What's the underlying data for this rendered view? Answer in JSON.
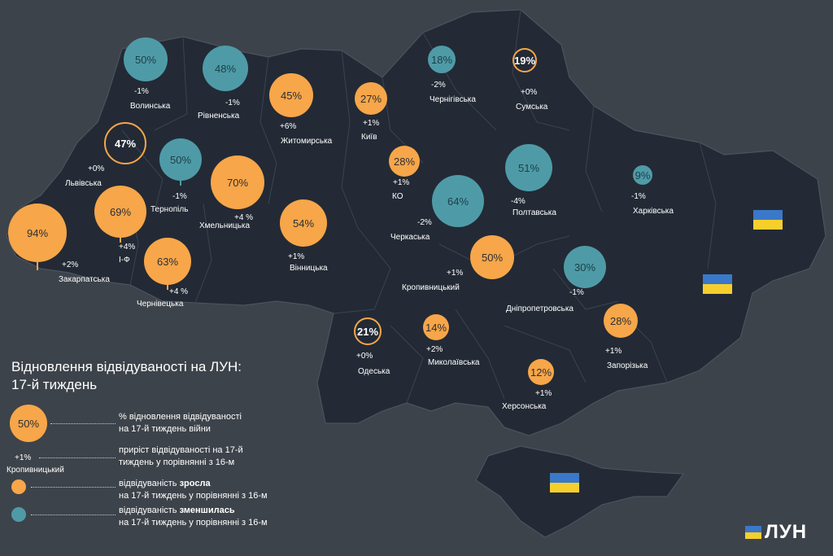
{
  "title_line1": "Відновлення відвідуваності на ЛУН:",
  "title_line2": "17-й тиждень",
  "colors": {
    "increase": "#f7a649",
    "decrease": "#4e9ba7",
    "map_fill": "#232a35",
    "background": "#3d434a"
  },
  "regions": [
    {
      "id": "volyn",
      "name": "Волинська",
      "value": "50%",
      "change": "-1%",
      "trend": "down"
    },
    {
      "id": "rivne",
      "name": "Рівненська",
      "value": "48%",
      "change": "-1%",
      "trend": "down"
    },
    {
      "id": "zhytomyr",
      "name": "Житомирська",
      "value": "45%",
      "change": "+6%",
      "trend": "up"
    },
    {
      "id": "kyiv",
      "name": "Київ",
      "value": "27%",
      "change": "+1%",
      "trend": "up"
    },
    {
      "id": "chernihiv",
      "name": "Чернігівська",
      "value": "18%",
      "change": "-2%",
      "trend": "down"
    },
    {
      "id": "sumy",
      "name": "Сумська",
      "value": "19%",
      "change": "+0%",
      "trend": "ring"
    },
    {
      "id": "lviv",
      "name": "Львівська",
      "value": "47%",
      "change": "+0%",
      "trend": "ring"
    },
    {
      "id": "ternopil",
      "name": "Тернопіль",
      "value": "50%",
      "change": "-1%",
      "trend": "down"
    },
    {
      "id": "khmelnytskyi",
      "name": "Хмельницька",
      "value": "70%",
      "change": "+4 %",
      "trend": "up"
    },
    {
      "id": "ko",
      "name": "КО",
      "value": "28%",
      "change": "+1%",
      "trend": "up"
    },
    {
      "id": "cherkasy",
      "name": "Черкаська",
      "value": "64%",
      "change": "-2%",
      "trend": "down"
    },
    {
      "id": "poltava",
      "name": "Полтавська",
      "value": "51%",
      "change": "-4%",
      "trend": "down"
    },
    {
      "id": "kharkiv",
      "name": "Харківська",
      "value": "9%",
      "change": "-1%",
      "trend": "down"
    },
    {
      "id": "zakarpattia",
      "name": "Закарпатська",
      "value": "94%",
      "change": "+2%",
      "trend": "up"
    },
    {
      "id": "ivano_frankivsk",
      "name": "І-Ф",
      "value": "69%",
      "change": "+4%",
      "trend": "up"
    },
    {
      "id": "vinnytsia",
      "name": "Вінницька",
      "value": "54%",
      "change": "+1%",
      "trend": "up"
    },
    {
      "id": "chernivtsi",
      "name": "Чернівецька",
      "value": "63%",
      "change": "+4 %",
      "trend": "up"
    },
    {
      "id": "kropyvnytskyi",
      "name": "Кропивницький",
      "value": "50%",
      "change": "+1%",
      "trend": "up"
    },
    {
      "id": "dnipro",
      "name": "Дніпропетровська",
      "value": "30%",
      "change": "-1%",
      "trend": "down"
    },
    {
      "id": "odesa",
      "name": "Одеська",
      "value": "21%",
      "change": "+0%",
      "trend": "ring"
    },
    {
      "id": "mykolaiv",
      "name": "Миколаївська",
      "value": "14%",
      "change": "+2%",
      "trend": "up"
    },
    {
      "id": "zaporizhzhia",
      "name": "Запорізька",
      "value": "28%",
      "change": "+1%",
      "trend": "up"
    },
    {
      "id": "kherson",
      "name": "Херсонська",
      "value": "12%",
      "change": "+1%",
      "trend": "up"
    }
  ],
  "legend": {
    "sample_value": "50%",
    "value_desc_1": "% відновлення відвідуваності",
    "value_desc_2": "на 17-й тиждень війни",
    "sample_change": "+1%",
    "sample_name": "Кропивницький",
    "change_desc_1": "приріст відвідуваності на 17-й",
    "change_desc_2": "тиждень у порівнянні з 16-м",
    "up_pre": "відвідуваність ",
    "up_bold": "зросла",
    "up_desc_2": "на 17-й тиждень у порівнянні з 16-м",
    "down_pre": "відвідуваність ",
    "down_bold": "зменшилась",
    "down_desc_2": "на 17-й тиждень у порівнянні з 16-м"
  },
  "logo_text": "ЛУН"
}
